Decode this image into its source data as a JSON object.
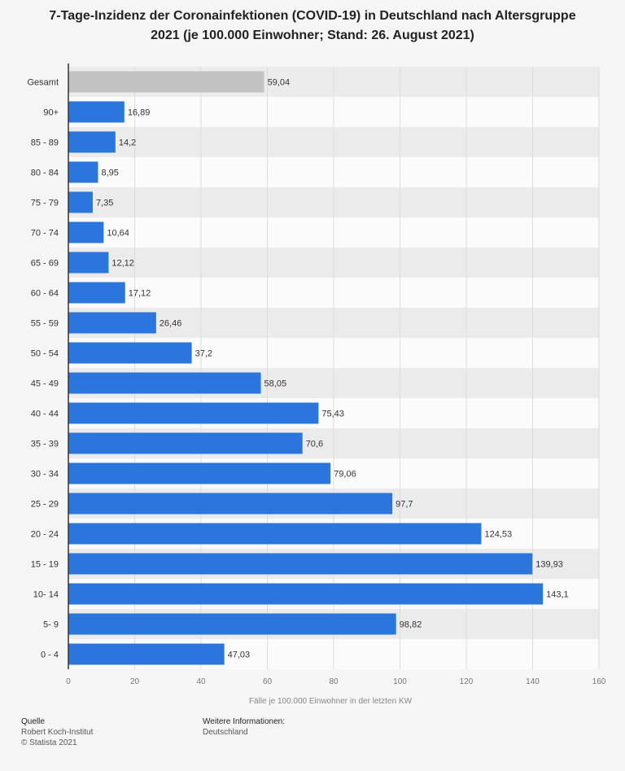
{
  "title": {
    "line1": "7-Tage-Inzidenz der Coronainfektionen (COVID-19) in Deutschland nach Altersgruppe",
    "line2": "2021 (je 100.000 Einwohner; Stand: 26. August 2021)"
  },
  "chart_data": {
    "type": "bar",
    "orientation": "horizontal",
    "title": "7-Tage-Inzidenz der Coronainfektionen (COVID-19) in Deutschland nach Altersgruppe 2021 (je 100.000 Einwohner; Stand: 26. August 2021)",
    "xlabel": "Fälle je 100.000 Einwohner in der letzten KW",
    "ylabel": "",
    "xlim": [
      0,
      160
    ],
    "xticks": [
      0,
      20,
      40,
      60,
      80,
      100,
      120,
      140,
      160
    ],
    "grid": true,
    "categories": [
      "Gesamt",
      "90+",
      "85 - 89",
      "80 - 84",
      "75 - 79",
      "70 - 74",
      "65 - 69",
      "60 - 64",
      "55 - 59",
      "50 - 54",
      "45 - 49",
      "40 - 44",
      "35 - 39",
      "30 - 34",
      "25 - 29",
      "20 - 24",
      "15 - 19",
      "10- 14",
      "5- 9",
      "0 - 4"
    ],
    "values": [
      59.04,
      16.89,
      14.2,
      8.95,
      7.35,
      10.64,
      12.12,
      17.12,
      26.46,
      37.2,
      58.05,
      75.43,
      70.6,
      79.06,
      97.7,
      124.53,
      139.93,
      143.1,
      98.82,
      47.03
    ],
    "value_labels": [
      "59,04",
      "16,89",
      "14,2",
      "8,95",
      "7,35",
      "10,64",
      "12,12",
      "17,12",
      "26,46",
      "37,2",
      "58,05",
      "75,43",
      "70,6",
      "79,06",
      "97,7",
      "124,53",
      "139,93",
      "143,1",
      "98,82",
      "47,03"
    ],
    "colors": {
      "highlight": "#c2c2c2",
      "bar": "#2a76dd",
      "gridline": "#dcdcdc",
      "band": "#ebebeb",
      "axis": "#333333"
    }
  },
  "footer": {
    "source_title": "Quelle",
    "source_lines": [
      "Robert Koch-Institut",
      "© Statista 2021"
    ],
    "info_title": "Weitere Informationen:",
    "info_lines": [
      "Deutschland"
    ]
  }
}
